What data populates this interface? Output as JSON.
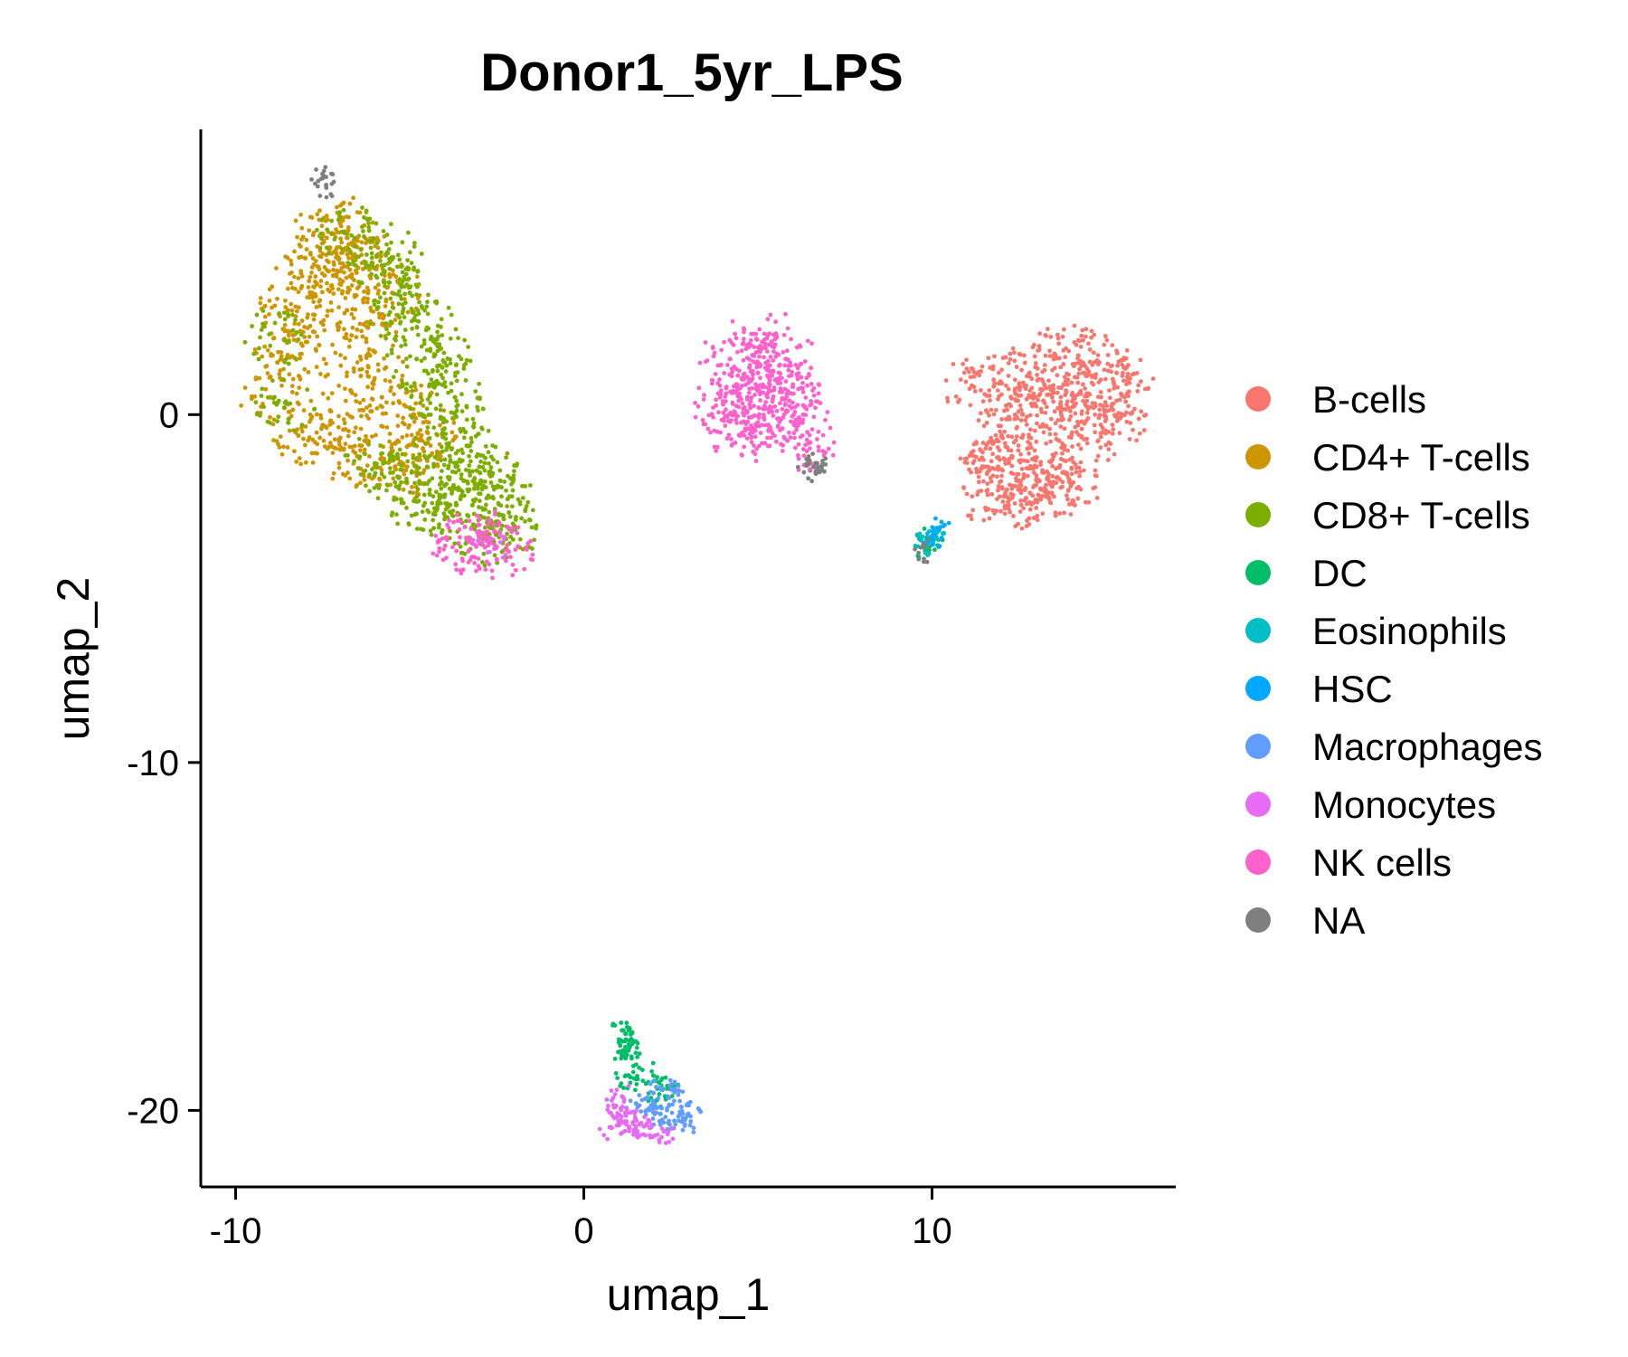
{
  "chart_data": {
    "type": "scatter",
    "title": "Donor1_5yr_LPS",
    "xlabel": "umap_1",
    "ylabel": "umap_2",
    "xlim": [
      -11,
      17
    ],
    "ylim": [
      -22.2,
      8.2
    ],
    "xticks": [
      -10,
      0,
      10
    ],
    "xtick_labels": [
      "-10",
      "0",
      "10"
    ],
    "yticks": [
      0,
      -10,
      -20
    ],
    "ytick_labels": [
      "0",
      "-10",
      "-20"
    ],
    "grid": false,
    "legend_position": "right",
    "series": [
      {
        "name": "B-cells",
        "color": "#F8766D",
        "points": [
          [
            11.2,
            0.8
          ],
          [
            12.0,
            0.9
          ],
          [
            12.8,
            1.2
          ],
          [
            13.5,
            1.6
          ],
          [
            14.2,
            1.7
          ],
          [
            14.8,
            1.5
          ],
          [
            15.3,
            1.2
          ],
          [
            15.6,
            0.6
          ],
          [
            15.4,
            -0.1
          ],
          [
            14.9,
            -0.5
          ],
          [
            14.3,
            -0.2
          ],
          [
            13.7,
            0.1
          ],
          [
            13.2,
            0.4
          ],
          [
            12.6,
            0.0
          ],
          [
            12.0,
            -0.6
          ],
          [
            11.9,
            -1.5
          ],
          [
            12.3,
            -1.2
          ],
          [
            13.0,
            -1.5
          ],
          [
            13.6,
            -1.8
          ],
          [
            14.0,
            -2.0
          ],
          [
            13.3,
            -2.3
          ],
          [
            12.7,
            -2.4
          ],
          [
            12.2,
            -2.6
          ],
          [
            11.6,
            -2.3
          ],
          [
            11.5,
            -1.5
          ],
          [
            12.5,
            -1.9
          ],
          [
            13.8,
            -1.0
          ],
          [
            14.5,
            0.6
          ],
          [
            13.9,
            1.0
          ],
          [
            12.4,
            0.6
          ]
        ]
      },
      {
        "name": "CD4+ T-cells",
        "color": "#CD9600",
        "points": [
          [
            -8.5,
            3.0
          ],
          [
            -8.0,
            4.5
          ],
          [
            -7.5,
            5.2
          ],
          [
            -7.0,
            5.5
          ],
          [
            -6.5,
            5.0
          ],
          [
            -6.0,
            4.2
          ],
          [
            -5.5,
            3.5
          ],
          [
            -7.8,
            3.5
          ],
          [
            -7.2,
            4.0
          ],
          [
            -6.8,
            3.0
          ],
          [
            -6.2,
            2.5
          ],
          [
            -8.8,
            1.5
          ],
          [
            -9.0,
            0.5
          ],
          [
            -8.2,
            -0.6
          ],
          [
            -7.5,
            -0.3
          ],
          [
            -7.0,
            -1.0
          ],
          [
            -6.5,
            -1.2
          ],
          [
            -5.8,
            -1.3
          ],
          [
            -5.2,
            -1.6
          ],
          [
            -4.7,
            -1.3
          ],
          [
            -4.5,
            -0.5
          ],
          [
            -5.0,
            0.2
          ],
          [
            -6.7,
            0.7
          ],
          [
            -6.0,
            1.8
          ],
          [
            -7.6,
            2.0
          ],
          [
            -8.5,
            2.4
          ],
          [
            -6.4,
            3.8
          ],
          [
            -7.3,
            4.8
          ],
          [
            -5.8,
            0.5
          ],
          [
            -4.8,
            -0.9
          ]
        ]
      },
      {
        "name": "CD8+ T-cells",
        "color": "#7CAE00",
        "points": [
          [
            -6.8,
            5.2
          ],
          [
            -6.2,
            5.0
          ],
          [
            -5.5,
            4.5
          ],
          [
            -5.0,
            3.5
          ],
          [
            -4.5,
            2.5
          ],
          [
            -4.0,
            1.5
          ],
          [
            -3.7,
            0.5
          ],
          [
            -3.4,
            -0.5
          ],
          [
            -3.0,
            -1.5
          ],
          [
            -2.6,
            -2.4
          ],
          [
            -2.3,
            -3.0
          ],
          [
            -2.0,
            -3.2
          ],
          [
            -2.8,
            -3.5
          ],
          [
            -3.5,
            -3.1
          ],
          [
            -4.2,
            -2.6
          ],
          [
            -4.8,
            -2.5
          ],
          [
            -5.3,
            -1.8
          ],
          [
            -3.9,
            -1.8
          ],
          [
            -3.2,
            -2.6
          ],
          [
            -4.0,
            -0.4
          ],
          [
            -4.4,
            0.6
          ],
          [
            -4.8,
            1.6
          ],
          [
            -5.3,
            2.8
          ],
          [
            -2.4,
            -1.9
          ],
          [
            -3.6,
            -2.1
          ],
          [
            -5.6,
            3.8
          ],
          [
            -8.6,
            0.2
          ],
          [
            -8.9,
            2.2
          ],
          [
            -6.0,
            -1.4
          ],
          [
            -4.5,
            -1.5
          ]
        ]
      },
      {
        "name": "DC",
        "color": "#00BE67",
        "points": [
          [
            1.2,
            -17.8
          ],
          [
            1.3,
            -18.1
          ],
          [
            1.2,
            -18.5
          ],
          [
            1.3,
            -18.2
          ],
          [
            1.2,
            -19.0
          ],
          [
            1.5,
            -19.1
          ],
          [
            2.0,
            -19.0
          ],
          [
            2.4,
            -19.3
          ],
          [
            9.8,
            -3.8
          ],
          [
            10.0,
            -3.5
          ],
          [
            2.1,
            -19.7
          ],
          [
            1.1,
            -17.7
          ]
        ]
      },
      {
        "name": "Eosinophils",
        "color": "#00BFC4",
        "points": [
          [
            9.9,
            -3.6
          ],
          [
            10.1,
            -3.4
          ],
          [
            9.8,
            -3.7
          ]
        ]
      },
      {
        "name": "HSC",
        "color": "#00A9FF",
        "points": [
          [
            10.0,
            -3.5
          ],
          [
            10.2,
            -3.3
          ]
        ]
      },
      {
        "name": "Macrophages",
        "color": "#619CFF",
        "points": [
          [
            1.5,
            -19.8
          ],
          [
            2.0,
            -19.5
          ],
          [
            2.4,
            -19.6
          ],
          [
            2.8,
            -19.9
          ],
          [
            3.0,
            -20.1
          ],
          [
            2.6,
            -20.3
          ],
          [
            2.2,
            -20.1
          ],
          [
            1.8,
            -20.0
          ],
          [
            2.5,
            -19.4
          ],
          [
            2.9,
            -20.4
          ]
        ]
      },
      {
        "name": "Monocytes",
        "color": "#E76BF3",
        "points": [
          [
            0.8,
            -20.5
          ],
          [
            1.0,
            -20.3
          ],
          [
            1.3,
            -20.5
          ],
          [
            1.6,
            -20.4
          ],
          [
            1.2,
            -20.1
          ],
          [
            0.9,
            -19.9
          ],
          [
            1.5,
            -20.6
          ],
          [
            1.9,
            -20.5
          ],
          [
            2.3,
            -20.6
          ],
          [
            1.1,
            -19.6
          ],
          [
            -2.5,
            -3.8
          ],
          [
            -3.0,
            -3.7
          ]
        ]
      },
      {
        "name": "NK cells",
        "color": "#FF61CC",
        "points": [
          [
            4.2,
            1.6
          ],
          [
            4.8,
            2.0
          ],
          [
            5.4,
            2.1
          ],
          [
            5.8,
            1.6
          ],
          [
            6.0,
            0.8
          ],
          [
            6.3,
            0.0
          ],
          [
            6.5,
            -0.8
          ],
          [
            4.9,
            -0.4
          ],
          [
            4.5,
            -0.6
          ],
          [
            4.2,
            -0.2
          ],
          [
            4.0,
            0.3
          ],
          [
            4.4,
            0.8
          ],
          [
            5.0,
            1.2
          ],
          [
            5.5,
            1.0
          ],
          [
            5.2,
            0.2
          ],
          [
            5.7,
            -0.4
          ],
          [
            4.7,
            0.5
          ],
          [
            5.9,
            0.4
          ],
          [
            -3.2,
            -3.7
          ],
          [
            -2.6,
            -3.6
          ],
          [
            -3.6,
            -3.7
          ],
          [
            -2.3,
            -3.9
          ]
        ]
      },
      {
        "name": "NA",
        "color": "#7F7F7F",
        "points": [
          [
            6.6,
            -1.5
          ],
          [
            6.7,
            -1.4
          ],
          [
            6.5,
            -1.6
          ],
          [
            -7.5,
            6.8
          ],
          [
            -7.4,
            6.6
          ],
          [
            9.8,
            -3.9
          ]
        ]
      }
    ]
  }
}
